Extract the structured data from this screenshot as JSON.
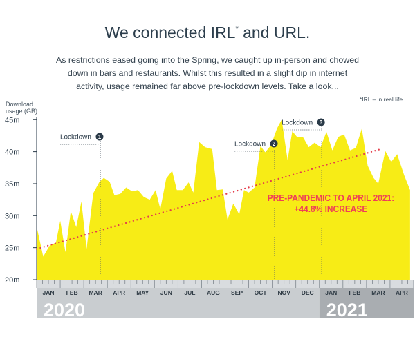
{
  "title": "We connected IRL",
  "title_mark": "*",
  "title_end": " and URL.",
  "subtitle": "As restrictions eased going into the Spring, we caught up in-person and chowed down in bars and restaurants. Whilst this resulted in a slight dip in internet activity, usage remained far above pre-lockdown levels. Take a look...",
  "footnote": "*IRL – in real life.",
  "chart_data": {
    "type": "area",
    "ylabel_line1": "Download",
    "ylabel_line2": "usage (GB)",
    "ylim": [
      20,
      46
    ],
    "yticks": [
      {
        "value": 20,
        "label": "20m"
      },
      {
        "value": 25,
        "label": "25m"
      },
      {
        "value": 30,
        "label": "30m"
      },
      {
        "value": 35,
        "label": "35m"
      },
      {
        "value": 40,
        "label": "40m"
      },
      {
        "value": 45,
        "label": "45m"
      }
    ],
    "months": [
      "JAN",
      "FEB",
      "MAR",
      "APR",
      "MAY",
      "JUN",
      "JUL",
      "AUG",
      "SEP",
      "OCT",
      "NOV",
      "DEC",
      "JAN",
      "FEB",
      "MAR",
      "APR"
    ],
    "years": [
      {
        "label": "2020",
        "start_month": 0,
        "end_month": 12
      },
      {
        "label": "2021",
        "start_month": 12,
        "end_month": 16
      }
    ],
    "grid": false,
    "area_color": "#f7ec16",
    "year_bar_color": "#c9cdd0",
    "year_bar_dark_color": "#a9adb1",
    "tick_strip_color": "#d9dcdf",
    "trend_color": "#e43d4b",
    "annotation_color": "#ef3f57",
    "series": [
      {
        "values": [
          [
            0.0,
            28.3
          ],
          [
            0.28,
            23.6
          ],
          [
            0.55,
            25.3
          ],
          [
            0.82,
            25.8
          ],
          [
            1.0,
            29.2
          ],
          [
            1.22,
            24.3
          ],
          [
            1.45,
            30.7
          ],
          [
            1.68,
            28.2
          ],
          [
            1.9,
            32.2
          ],
          [
            2.12,
            24.8
          ],
          [
            2.4,
            33.5
          ],
          [
            2.65,
            35.2
          ],
          [
            2.85,
            35.9
          ],
          [
            3.1,
            35.3
          ],
          [
            3.3,
            33.2
          ],
          [
            3.55,
            33.4
          ],
          [
            3.8,
            34.4
          ],
          [
            4.05,
            33.8
          ],
          [
            4.3,
            34.0
          ],
          [
            4.55,
            32.9
          ],
          [
            4.8,
            32.5
          ],
          [
            5.05,
            34.0
          ],
          [
            5.25,
            31.0
          ],
          [
            5.5,
            35.8
          ],
          [
            5.75,
            37.0
          ],
          [
            5.95,
            34.0
          ],
          [
            6.2,
            34.0
          ],
          [
            6.45,
            35.2
          ],
          [
            6.65,
            33.6
          ],
          [
            6.9,
            41.5
          ],
          [
            7.15,
            40.7
          ],
          [
            7.45,
            40.4
          ],
          [
            7.65,
            34.0
          ],
          [
            7.9,
            34.1
          ],
          [
            8.1,
            29.4
          ],
          [
            8.35,
            31.9
          ],
          [
            8.6,
            30.2
          ],
          [
            8.8,
            34.0
          ],
          [
            9.0,
            33.6
          ],
          [
            9.25,
            34.4
          ],
          [
            9.5,
            40.9
          ],
          [
            9.7,
            39.9
          ],
          [
            9.95,
            41.0
          ],
          [
            10.2,
            43.6
          ],
          [
            10.4,
            45.0
          ],
          [
            10.65,
            38.7
          ],
          [
            10.85,
            43.2
          ],
          [
            11.05,
            42.3
          ],
          [
            11.3,
            42.3
          ],
          [
            11.55,
            40.7
          ],
          [
            11.8,
            41.4
          ],
          [
            12.05,
            40.7
          ],
          [
            12.3,
            43.1
          ],
          [
            12.55,
            40.2
          ],
          [
            12.8,
            42.3
          ],
          [
            13.05,
            42.7
          ],
          [
            13.3,
            40.2
          ],
          [
            13.55,
            40.6
          ],
          [
            13.8,
            43.6
          ],
          [
            14.05,
            37.8
          ],
          [
            14.3,
            35.9
          ],
          [
            14.5,
            35.0
          ],
          [
            14.8,
            40.1
          ],
          [
            15.05,
            38.4
          ],
          [
            15.3,
            39.6
          ],
          [
            15.6,
            36.3
          ],
          [
            15.85,
            34.0
          ]
        ]
      }
    ],
    "trend": {
      "from": [
        0.0,
        24.8
      ],
      "to": [
        14.6,
        40.4
      ]
    },
    "annotation": {
      "line1": "PRE-PANDEMIC TO APRIL 2021:",
      "line2": "+44.8% INCREASE"
    },
    "markers": [
      {
        "label": "Lockdown",
        "number": "1",
        "month_pos": 2.7
      },
      {
        "label": "Lockdown",
        "number": "2",
        "month_pos": 10.1
      },
      {
        "label": "Lockdown",
        "number": "3",
        "month_pos": 12.1
      }
    ]
  }
}
